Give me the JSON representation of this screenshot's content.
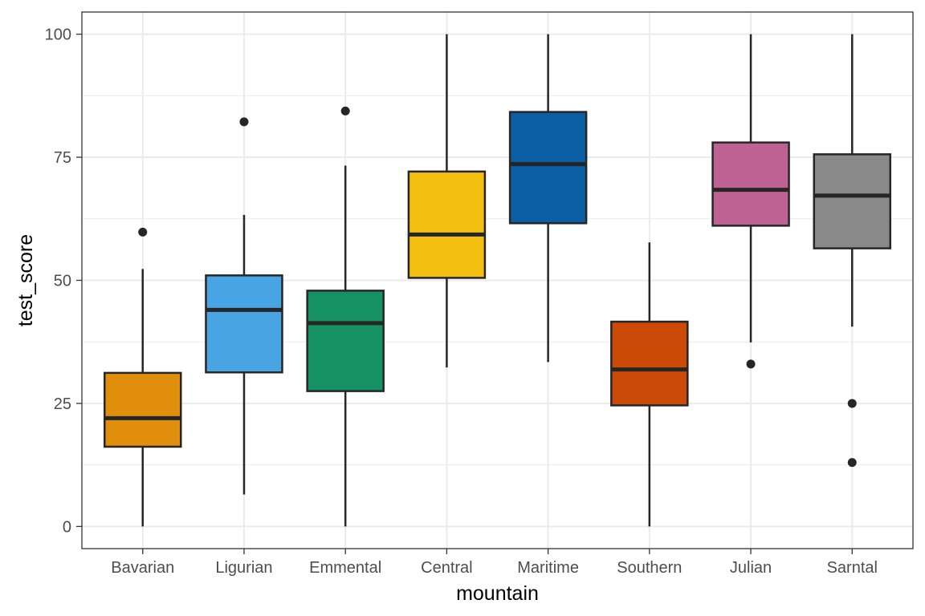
{
  "chart_data": {
    "type": "boxplot",
    "title": "",
    "xlabel": "mountain",
    "ylabel": "test_score",
    "ylim": [
      -4.5,
      104.5
    ],
    "yticks": [
      0,
      25,
      50,
      75,
      100
    ],
    "grid": true,
    "legend": "none",
    "categories": [
      "Bavarian",
      "Ligurian",
      "Emmental",
      "Central",
      "Maritime",
      "Southern",
      "Julian",
      "Sarntal"
    ],
    "boxes": [
      {
        "category": "Bavarian",
        "color": "#E08E0B",
        "whisker_low": 0,
        "q1": 16.2,
        "median": 22.0,
        "q3": 31.2,
        "whisker_high": 52.3,
        "outliers": [
          59.8
        ]
      },
      {
        "category": "Ligurian",
        "color": "#48A4E3",
        "whisker_low": 6.5,
        "q1": 31.3,
        "median": 44.0,
        "q3": 51.0,
        "whisker_high": 63.3,
        "outliers": [
          82.2
        ]
      },
      {
        "category": "Emmental",
        "color": "#169163",
        "whisker_low": 0,
        "q1": 27.5,
        "median": 41.3,
        "q3": 47.9,
        "whisker_high": 73.3,
        "outliers": [
          84.4
        ]
      },
      {
        "category": "Central",
        "color": "#F2BE10",
        "whisker_low": 32.3,
        "q1": 50.5,
        "median": 59.3,
        "q3": 72.1,
        "whisker_high": 100,
        "outliers": []
      },
      {
        "category": "Maritime",
        "color": "#0B5EA4",
        "whisker_low": 33.4,
        "q1": 61.6,
        "median": 73.6,
        "q3": 84.2,
        "whisker_high": 100,
        "outliers": []
      },
      {
        "category": "Southern",
        "color": "#CC4A07",
        "whisker_low": 0,
        "q1": 24.6,
        "median": 31.9,
        "q3": 41.6,
        "whisker_high": 57.7,
        "outliers": []
      },
      {
        "category": "Julian",
        "color": "#BE6293",
        "whisker_low": 37.4,
        "q1": 61.1,
        "median": 68.4,
        "q3": 78.0,
        "whisker_high": 100,
        "outliers": [
          33.0
        ]
      },
      {
        "category": "Sarntal",
        "color": "#898989",
        "whisker_low": 40.6,
        "q1": 56.5,
        "median": 67.2,
        "q3": 75.6,
        "whisker_high": 100,
        "outliers": [
          25.0,
          13.0
        ]
      }
    ]
  }
}
